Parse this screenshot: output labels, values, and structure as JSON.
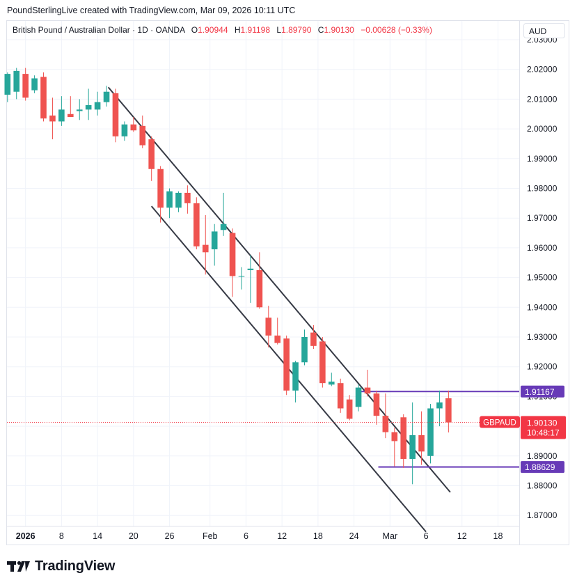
{
  "header": {
    "attribution": "PoundSterlingLive created with TradingView.com, Mar 09, 2026 10:11 UTC"
  },
  "legend": {
    "title": "British Pound / Australian Dollar · 1D · OANDA",
    "o_label": "O",
    "o_value": "1.90944",
    "h_label": "H",
    "h_value": "1.91198",
    "l_label": "L",
    "l_value": "1.89790",
    "c_label": "C",
    "c_value": "1.90130",
    "change": "−0.00628 (−0.33%)"
  },
  "currency_button": "AUD",
  "footer": {
    "brand": "TradingView"
  },
  "colors": {
    "up": "#26a69a",
    "down": "#ef5350",
    "line": "#363a45",
    "level": "#673ab7",
    "price_tag": "#f23645",
    "grid": "#f0f3fa"
  },
  "chart_data": {
    "type": "candlestick",
    "symbol": "GBPAUD",
    "interval": "1D",
    "ylim": [
      1.865,
      2.03
    ],
    "y_ticks": [
      2.03,
      2.02,
      2.01,
      2.0,
      1.99,
      1.98,
      1.97,
      1.96,
      1.95,
      1.94,
      1.93,
      1.92,
      1.91,
      1.9,
      1.89,
      1.88,
      1.87
    ],
    "y_tick_labels": [
      "2.03000",
      "2.02000",
      "2.01000",
      "2.00000",
      "1.99000",
      "1.98000",
      "1.97000",
      "1.96000",
      "1.95000",
      "1.94000",
      "1.93000",
      "1.92000",
      "1.91000",
      "1.90000",
      "1.89000",
      "1.88000",
      "1.87000"
    ],
    "x_ticks": [
      {
        "label": "2026",
        "index": 2,
        "bold": true
      },
      {
        "label": "8",
        "index": 6
      },
      {
        "label": "14",
        "index": 10
      },
      {
        "label": "20",
        "index": 14
      },
      {
        "label": "26",
        "index": 18
      },
      {
        "label": "Feb",
        "index": 22.5
      },
      {
        "label": "6",
        "index": 26.5
      },
      {
        "label": "12",
        "index": 30.5
      },
      {
        "label": "18",
        "index": 34.5
      },
      {
        "label": "24",
        "index": 38.5
      },
      {
        "label": "Mar",
        "index": 42.5
      },
      {
        "label": "6",
        "index": 46.5
      },
      {
        "label": "12",
        "index": 50.5
      },
      {
        "label": "18",
        "index": 54.5
      }
    ],
    "candles": [
      {
        "o": 2.0115,
        "h": 2.019,
        "l": 2.009,
        "c": 2.0185
      },
      {
        "o": 2.0125,
        "h": 2.0205,
        "l": 2.01,
        "c": 2.0195
      },
      {
        "o": 2.0185,
        "h": 2.0205,
        "l": 2.0095,
        "c": 2.0105
      },
      {
        "o": 2.013,
        "h": 2.018,
        "l": 2.012,
        "c": 2.017
      },
      {
        "o": 2.0175,
        "h": 2.019,
        "l": 2.0025,
        "c": 2.0035
      },
      {
        "o": 2.0045,
        "h": 2.0105,
        "l": 1.9965,
        "c": 2.0025
      },
      {
        "o": 2.0025,
        "h": 2.011,
        "l": 2.001,
        "c": 2.0065
      },
      {
        "o": 2.005,
        "h": 2.011,
        "l": 2.004,
        "c": 2.004
      },
      {
        "o": 2.006,
        "h": 2.01,
        "l": 2.003,
        "c": 2.0065
      },
      {
        "o": 2.0065,
        "h": 2.0135,
        "l": 2.003,
        "c": 2.008
      },
      {
        "o": 2.0065,
        "h": 2.0125,
        "l": 2.0045,
        "c": 2.009
      },
      {
        "o": 2.009,
        "h": 2.0145,
        "l": 2.0075,
        "c": 2.0125
      },
      {
        "o": 2.012,
        "h": 2.0135,
        "l": 1.9955,
        "c": 1.9975
      },
      {
        "o": 1.9975,
        "h": 2.0025,
        "l": 1.996,
        "c": 2.0015
      },
      {
        "o": 2.0015,
        "h": 2.004,
        "l": 1.999,
        "c": 1.9995
      },
      {
        "o": 2.001,
        "h": 2.0045,
        "l": 1.9935,
        "c": 1.9945
      },
      {
        "o": 1.9965,
        "h": 1.9975,
        "l": 1.9825,
        "c": 1.9865
      },
      {
        "o": 1.9865,
        "h": 1.9875,
        "l": 1.9685,
        "c": 1.9735
      },
      {
        "o": 1.9735,
        "h": 1.98,
        "l": 1.97,
        "c": 1.979
      },
      {
        "o": 1.9735,
        "h": 1.979,
        "l": 1.972,
        "c": 1.9785
      },
      {
        "o": 1.9785,
        "h": 1.981,
        "l": 1.9715,
        "c": 1.975
      },
      {
        "o": 1.975,
        "h": 1.977,
        "l": 1.9595,
        "c": 1.9605
      },
      {
        "o": 1.961,
        "h": 1.971,
        "l": 1.951,
        "c": 1.9585
      },
      {
        "o": 1.9595,
        "h": 1.968,
        "l": 1.954,
        "c": 1.9655
      },
      {
        "o": 1.966,
        "h": 1.9785,
        "l": 1.964,
        "c": 1.968
      },
      {
        "o": 1.965,
        "h": 1.9665,
        "l": 1.9435,
        "c": 1.9505
      },
      {
        "o": 1.9505,
        "h": 1.9535,
        "l": 1.946,
        "c": 1.9505
      },
      {
        "o": 1.9525,
        "h": 1.9575,
        "l": 1.9415,
        "c": 1.953
      },
      {
        "o": 1.9525,
        "h": 1.9585,
        "l": 1.9395,
        "c": 1.94
      },
      {
        "o": 1.9365,
        "h": 1.9405,
        "l": 1.9265,
        "c": 1.9305
      },
      {
        "o": 1.9305,
        "h": 1.9365,
        "l": 1.9275,
        "c": 1.928
      },
      {
        "o": 1.9295,
        "h": 1.9305,
        "l": 1.9105,
        "c": 1.912
      },
      {
        "o": 1.912,
        "h": 1.922,
        "l": 1.908,
        "c": 1.9215
      },
      {
        "o": 1.9215,
        "h": 1.9325,
        "l": 1.9205,
        "c": 1.93
      },
      {
        "o": 1.9315,
        "h": 1.934,
        "l": 1.926,
        "c": 1.927
      },
      {
        "o": 1.9285,
        "h": 1.93,
        "l": 1.913,
        "c": 1.9145
      },
      {
        "o": 1.914,
        "h": 1.918,
        "l": 1.9135,
        "c": 1.915
      },
      {
        "o": 1.9145,
        "h": 1.916,
        "l": 1.9045,
        "c": 1.906
      },
      {
        "o": 1.909,
        "h": 1.9105,
        "l": 1.902,
        "c": 1.9025
      },
      {
        "o": 1.9065,
        "h": 1.914,
        "l": 1.905,
        "c": 1.913
      },
      {
        "o": 1.913,
        "h": 1.919,
        "l": 1.91,
        "c": 1.911
      },
      {
        "o": 1.911,
        "h": 1.912,
        "l": 1.9005,
        "c": 1.9035
      },
      {
        "o": 1.9035,
        "h": 1.911,
        "l": 1.896,
        "c": 1.898
      },
      {
        "o": 1.898,
        "h": 1.8995,
        "l": 1.8865,
        "c": 1.895
      },
      {
        "o": 1.903,
        "h": 1.904,
        "l": 1.886,
        "c": 1.889
      },
      {
        "o": 1.889,
        "h": 1.908,
        "l": 1.8805,
        "c": 1.897
      },
      {
        "o": 1.897,
        "h": 1.905,
        "l": 1.887,
        "c": 1.8915
      },
      {
        "o": 1.89,
        "h": 1.9075,
        "l": 1.8875,
        "c": 1.906
      },
      {
        "o": 1.906,
        "h": 1.912,
        "l": 1.9,
        "c": 1.908
      },
      {
        "o": 1.9094,
        "h": 1.912,
        "l": 1.8979,
        "c": 1.9013
      }
    ],
    "channel_lines": [
      {
        "from": {
          "index": 11.2,
          "price": 2.014
        },
        "to": {
          "index": 49.2,
          "price": 1.8778
        }
      },
      {
        "from": {
          "index": 16.0,
          "price": 1.974
        },
        "to": {
          "index": 46.5,
          "price": 1.8645
        }
      }
    ],
    "levels": [
      {
        "price": 1.91167,
        "label": "1.91167",
        "from_index": 39.3
      },
      {
        "price": 1.88629,
        "label": "1.88629",
        "from_index": 41.2
      }
    ],
    "last_price": {
      "price": 1.9013,
      "label": "1.90130",
      "countdown": "10:48:17",
      "symbol_tag": "GBPAUD"
    }
  }
}
